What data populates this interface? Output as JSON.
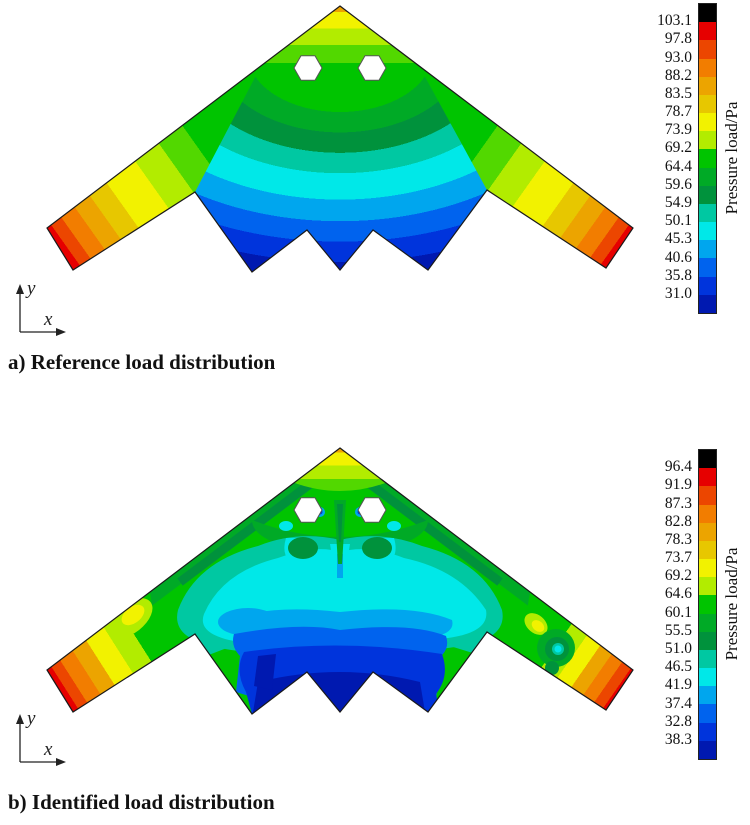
{
  "figure": {
    "panels": [
      {
        "caption": "a) Reference load distribution",
        "axes": {
          "x_label": "x",
          "y_label": "y"
        },
        "colorbar": {
          "unit_label": "Pressure load/Pa"
        }
      },
      {
        "caption": "b) Identified load distribution",
        "axes": {
          "x_label": "x",
          "y_label": "y"
        },
        "colorbar": {
          "unit_label": "Pressure load/Pa"
        }
      }
    ],
    "palette": {
      "black": "#000000",
      "red": "#e60000",
      "orange_red": "#ec4600",
      "orange": "#f27d00",
      "gold": "#eca400",
      "amber": "#e7c700",
      "yellow": "#f2f200",
      "chartreuse": "#b2ec00",
      "light_green": "#52d800",
      "green": "#00c400",
      "medium_green": "#00aa26",
      "dark_green": "#00923c",
      "teal": "#00c8a2",
      "cyan": "#00e8e8",
      "sky_blue": "#00a6ee",
      "blue": "#0063ee",
      "royal_blue": "#0034dc",
      "navy": "#0019b0"
    }
  },
  "chart_data": [
    {
      "type": "heatmap",
      "subtype": "filled-contour",
      "title": "a) Reference load distribution",
      "legend_label": "Pressure load/Pa",
      "levels": [
        103.1,
        97.8,
        93.0,
        88.2,
        83.5,
        78.7,
        73.9,
        69.2,
        64.4,
        59.6,
        54.9,
        50.1,
        45.3,
        40.6,
        35.8,
        31.0
      ],
      "level_labels": [
        "103.1",
        "97.8",
        "93.0",
        "88.2",
        "83.5",
        "78.7",
        "73.9",
        "69.2",
        "64.4",
        "59.6",
        "54.9",
        "50.1",
        "45.3",
        "40.6",
        "35.8",
        "31.0"
      ],
      "colorbar_colors_top_to_bottom": [
        "#000000",
        "#e60000",
        "#ec4600",
        "#f27d00",
        "#eca400",
        "#e7c700",
        "#f2f200",
        "#b2ec00",
        "#00c400",
        "#00aa26",
        "#00923c",
        "#00c8a2",
        "#00e8e8",
        "#00a6ee",
        "#0063ee",
        "#0034dc",
        "#0019b0"
      ],
      "geometry": "flying-wing planform, nose at top, sawtooth trailing edge, two hexagonal cutouts near nose",
      "field_description": "smooth concentric bands: yellow at nose apex, green ring, teal/cyan ring, blue to navy minimum at center trailing edge; wingtips grade yellow-orange-red (max at tips)",
      "axis_labels": {
        "x": "x",
        "y": "y"
      },
      "legend_position": "right"
    },
    {
      "type": "heatmap",
      "subtype": "filled-contour",
      "title": "b) Identified load distribution",
      "legend_label": "Pressure load/Pa",
      "levels": [
        96.4,
        91.9,
        87.3,
        82.8,
        78.3,
        73.7,
        69.2,
        64.6,
        60.1,
        55.5,
        51.0,
        46.5,
        41.9,
        37.4,
        32.8,
        38.3
      ],
      "level_labels": [
        "96.4",
        "91.9",
        "87.3",
        "82.8",
        "78.3",
        "73.7",
        "69.2",
        "64.6",
        "60.1",
        "55.5",
        "51.0",
        "46.5",
        "41.9",
        "37.4",
        "32.8",
        "38.3"
      ],
      "colorbar_colors_top_to_bottom": [
        "#000000",
        "#e60000",
        "#ec4600",
        "#f27d00",
        "#eca400",
        "#e7c700",
        "#f2f200",
        "#b2ec00",
        "#00c400",
        "#00aa26",
        "#00923c",
        "#00c8a2",
        "#00e8e8",
        "#00a6ee",
        "#0063ee",
        "#0034dc",
        "#0019b0"
      ],
      "geometry": "same flying-wing planform with two hexagonal cutouts near nose",
      "field_description": "irregular identified field: yellow nose cap, green region with dark-green streaks and small blue spots beside hexagons, ragged cyan/sky interior, navy minimum at trailing teeth, yellow patch on left wing, cyan-cored dark-green vortex blob on right wing, red wingtips",
      "axis_labels": {
        "x": "x",
        "y": "y"
      },
      "legend_position": "right"
    }
  ]
}
